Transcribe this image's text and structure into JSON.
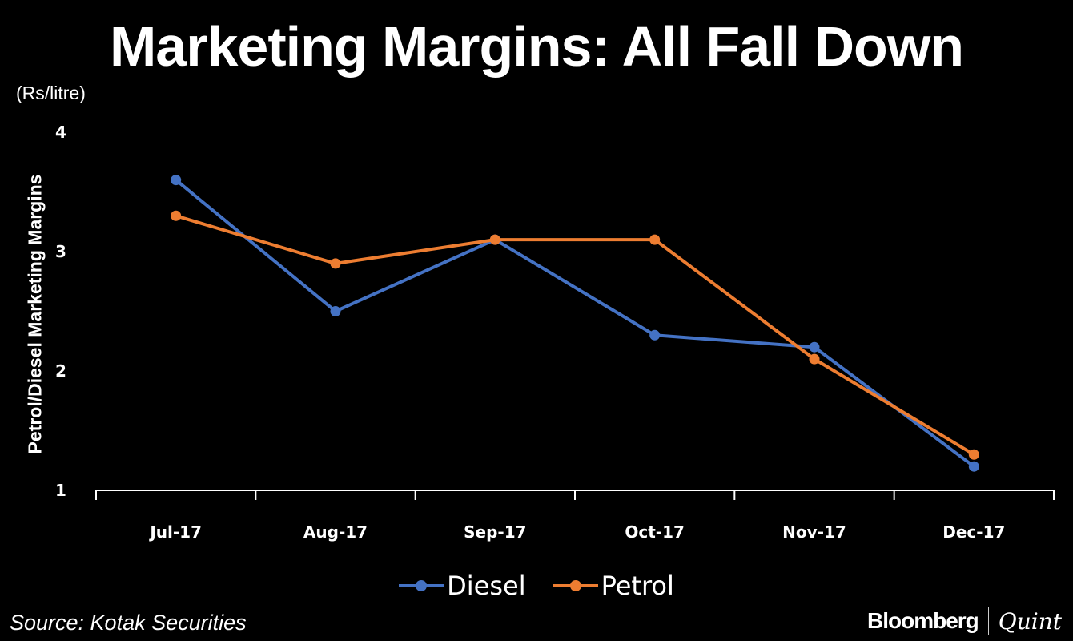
{
  "header": {
    "title": "Marketing Margins: All Fall Down",
    "unit": "(Rs/litre)"
  },
  "chart_data": {
    "type": "line",
    "ylabel": "Petrol/Diesel Marketing Margins",
    "categories": [
      "Jul-17",
      "Aug-17",
      "Sep-17",
      "Oct-17",
      "Nov-17",
      "Dec-17"
    ],
    "ylim": [
      1,
      4
    ],
    "yticks": [
      "1",
      "2",
      "3",
      "4"
    ],
    "series": [
      {
        "name": "Diesel",
        "color": "#4472C4",
        "values": [
          3.6,
          2.5,
          3.1,
          2.3,
          2.2,
          1.2
        ]
      },
      {
        "name": "Petrol",
        "color": "#ED7D31",
        "values": [
          3.3,
          2.9,
          3.1,
          3.1,
          2.1,
          1.3
        ]
      }
    ],
    "legend": "bottom"
  },
  "footer": {
    "source": "Source: Kotak Securities",
    "brand1": "Bloomberg",
    "brand2": "Quint"
  }
}
